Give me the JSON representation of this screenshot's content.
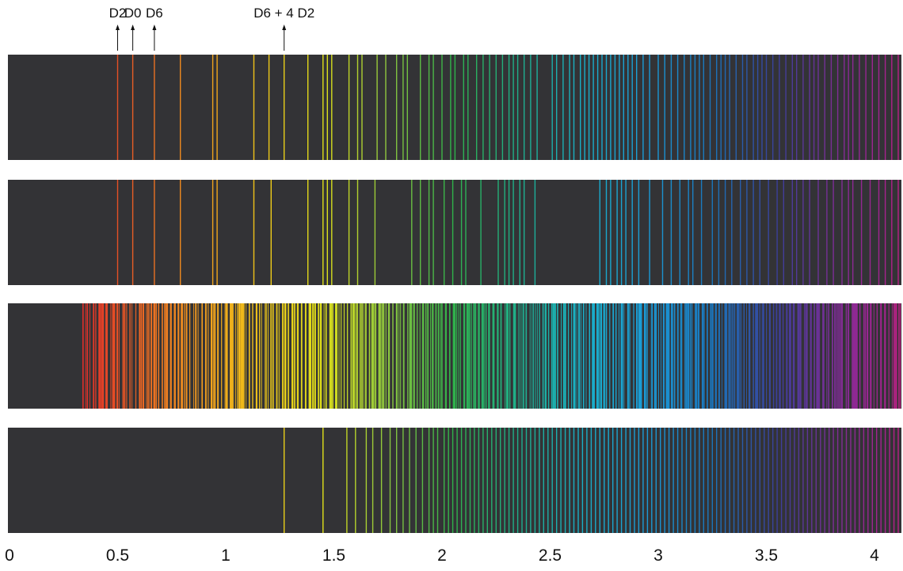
{
  "chart_data": {
    "type": "spectrum",
    "xlim": [
      0,
      4.15
    ],
    "x_ticks": [
      "0",
      "0.5",
      "1",
      "1.5",
      "2",
      "2.5",
      "3",
      "3.5",
      "4"
    ],
    "x_tick_values": [
      0,
      0.5,
      1,
      1.5,
      2,
      2.5,
      3,
      3.5,
      4
    ],
    "background_color": "#333336",
    "color_stops": [
      [
        0.3,
        "#d8262a"
      ],
      [
        0.55,
        "#e85a25"
      ],
      [
        0.85,
        "#f0961e"
      ],
      [
        1.15,
        "#f0c419"
      ],
      [
        1.45,
        "#dfe019"
      ],
      [
        1.75,
        "#8cc63f"
      ],
      [
        2.05,
        "#30b24a"
      ],
      [
        2.35,
        "#1fae8a"
      ],
      [
        2.65,
        "#1ab0c8"
      ],
      [
        2.95,
        "#1b9bd7"
      ],
      [
        3.25,
        "#1b75bb"
      ],
      [
        3.55,
        "#3b3f9a"
      ],
      [
        3.8,
        "#7a2e96"
      ],
      [
        4.05,
        "#a8228f"
      ],
      [
        4.15,
        "#c2207f"
      ]
    ],
    "annotations": [
      {
        "label": "D2",
        "x": 0.5
      },
      {
        "label": "D0",
        "x": 0.57
      },
      {
        "label": "D6",
        "x": 0.67
      },
      {
        "label": "D6 + 4 D2",
        "x": 1.27
      }
    ],
    "panels": [
      {
        "lines": [
          0.5,
          0.57,
          0.67,
          0.79,
          0.94,
          0.96,
          1.13,
          1.2,
          1.27,
          1.38,
          1.45,
          1.47,
          1.49,
          1.57,
          1.61,
          1.63,
          1.7,
          1.74,
          1.79,
          1.82,
          1.84,
          1.9,
          1.94,
          1.96,
          2.0,
          2.04,
          2.06,
          2.1,
          2.12,
          2.16,
          2.19,
          2.22,
          2.25,
          2.28,
          2.31,
          2.33,
          2.35,
          2.38,
          2.41,
          2.44,
          2.51,
          2.53,
          2.56,
          2.59,
          2.61,
          2.64,
          2.66,
          2.68,
          2.7,
          2.72,
          2.74,
          2.76,
          2.78,
          2.8,
          2.82,
          2.84,
          2.86,
          2.88,
          2.9,
          2.93,
          2.96,
          3.0,
          3.03,
          3.06,
          3.09,
          3.12,
          3.15,
          3.17,
          3.19,
          3.21,
          3.24,
          3.27,
          3.29,
          3.31,
          3.33,
          3.36,
          3.39,
          3.41,
          3.44,
          3.46,
          3.48,
          3.5,
          3.53,
          3.56,
          3.59,
          3.62,
          3.64,
          3.67,
          3.7,
          3.72,
          3.74,
          3.77,
          3.8,
          3.83,
          3.86,
          3.88,
          3.9,
          3.93,
          3.96,
          3.99,
          4.02,
          4.05,
          4.08,
          4.11,
          4.13
        ]
      },
      {
        "lines": [
          0.5,
          0.57,
          0.67,
          0.79,
          0.94,
          0.96,
          1.13,
          1.21,
          1.38,
          1.45,
          1.47,
          1.49,
          1.57,
          1.61,
          1.69,
          1.86,
          1.9,
          1.94,
          1.96,
          2.01,
          2.05,
          2.09,
          2.11,
          2.18,
          2.26,
          2.29,
          2.31,
          2.33,
          2.36,
          2.38,
          2.43,
          2.73,
          2.76,
          2.78,
          2.81,
          2.83,
          2.85,
          2.88,
          2.91,
          2.96,
          3.02,
          3.06,
          3.1,
          3.14,
          3.16,
          3.2,
          3.25,
          3.28,
          3.31,
          3.34,
          3.38,
          3.41,
          3.44,
          3.47,
          3.51,
          3.55,
          3.58,
          3.62,
          3.64,
          3.67,
          3.7,
          3.74,
          3.78,
          3.81,
          3.85,
          3.88,
          3.9,
          3.94,
          3.98,
          4.02,
          4.05,
          4.08,
          4.11,
          4.13
        ]
      },
      {
        "dense": true,
        "from": 0.34,
        "to": 4.15,
        "mean_spacing": 0.0115,
        "seed": 7
      },
      {
        "lines": [
          1.27,
          1.45,
          1.56,
          1.6,
          1.65,
          1.68,
          1.72,
          1.76,
          1.79,
          1.82,
          1.85,
          1.88,
          1.91,
          1.94,
          1.96,
          1.98,
          2.01,
          2.03,
          2.05,
          2.07,
          2.09,
          2.11,
          2.13,
          2.15,
          2.17,
          2.19,
          2.21,
          2.23,
          2.25,
          2.27,
          2.29,
          2.31,
          2.33,
          2.35,
          2.37,
          2.39,
          2.41,
          2.43,
          2.45,
          2.47,
          2.49,
          2.51,
          2.53,
          2.55,
          2.57,
          2.59,
          2.61,
          2.63,
          2.65,
          2.67,
          2.69,
          2.71,
          2.73,
          2.75,
          2.77,
          2.79,
          2.81,
          2.83,
          2.85,
          2.87,
          2.89,
          2.91,
          2.93,
          2.95,
          2.97,
          2.99,
          3.01,
          3.03,
          3.05,
          3.07,
          3.09,
          3.11,
          3.13,
          3.15,
          3.17,
          3.19,
          3.21,
          3.23,
          3.25,
          3.27,
          3.29,
          3.31,
          3.33,
          3.35,
          3.37,
          3.39,
          3.41,
          3.43,
          3.45,
          3.47,
          3.49,
          3.51,
          3.53,
          3.55,
          3.57,
          3.59,
          3.61,
          3.63,
          3.65,
          3.67,
          3.69,
          3.71,
          3.73,
          3.75,
          3.77,
          3.79,
          3.81,
          3.83,
          3.85,
          3.87,
          3.89,
          3.91,
          3.93,
          3.95,
          3.97,
          3.99,
          4.01,
          4.03,
          4.05,
          4.07,
          4.09,
          4.11,
          4.13
        ]
      }
    ]
  }
}
